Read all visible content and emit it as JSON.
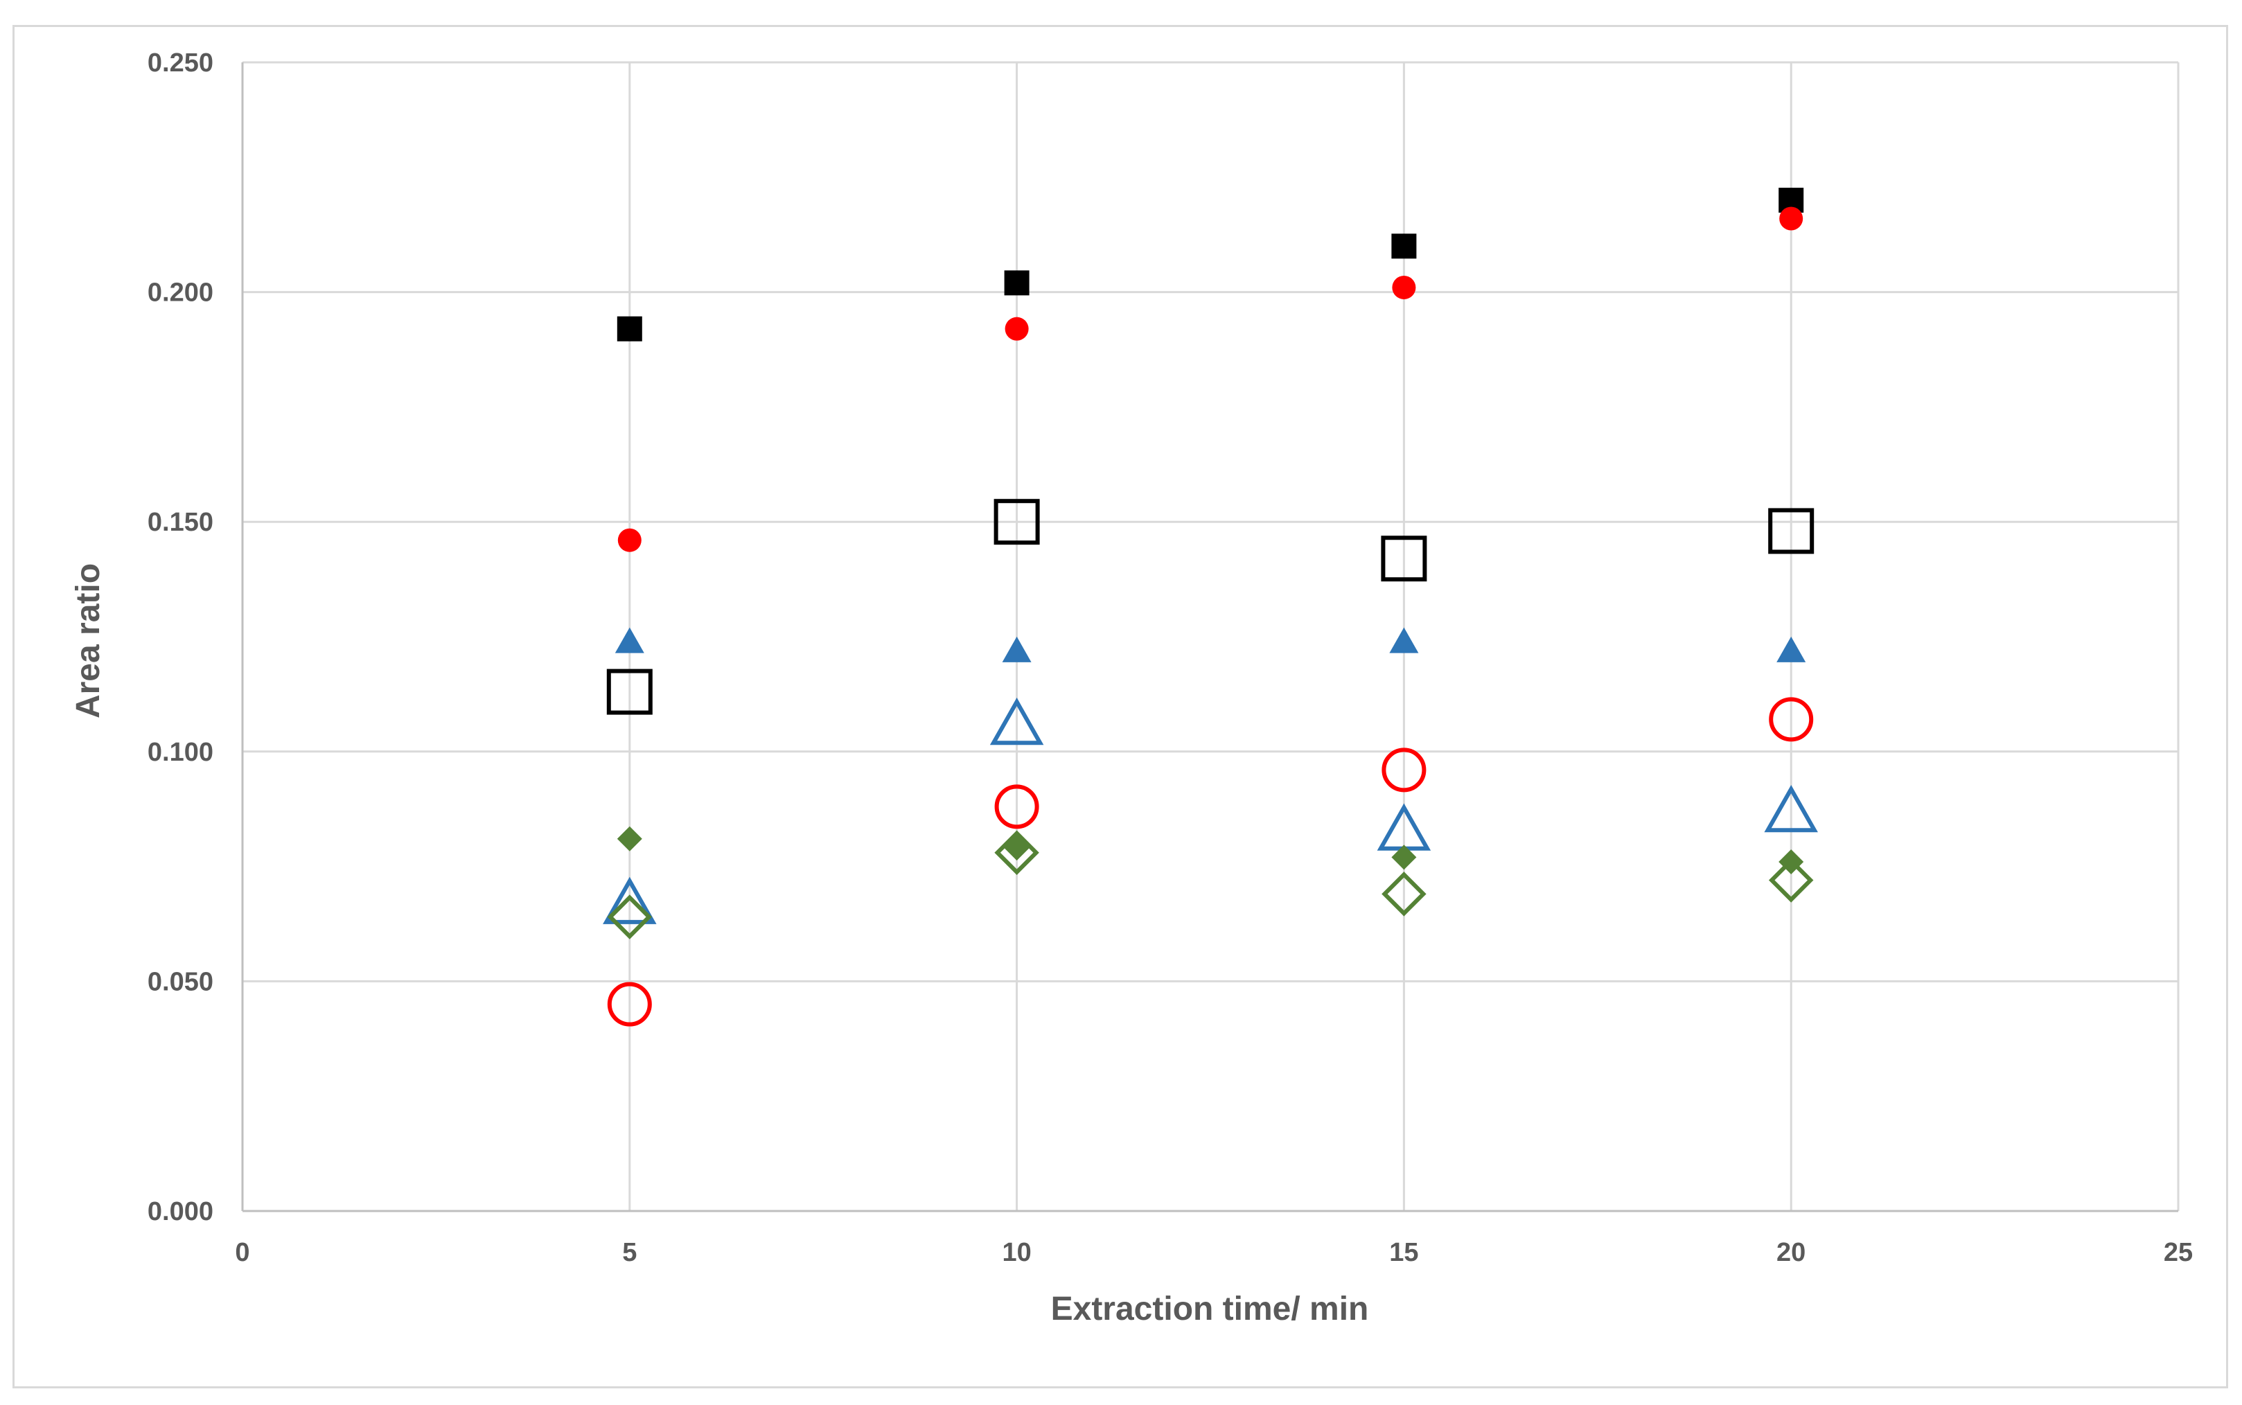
{
  "chart_data": {
    "type": "scatter",
    "xlabel": "Extraction time/ min",
    "ylabel": "Area ratio",
    "xlim": [
      0,
      25
    ],
    "ylim": [
      0,
      0.25
    ],
    "x_ticks": [
      "0",
      "5",
      "10",
      "15",
      "20",
      "25"
    ],
    "y_ticks": [
      "0.000",
      "0.050",
      "0.100",
      "0.150",
      "0.200",
      "0.250"
    ],
    "grid": true,
    "legend": "none",
    "series": [
      {
        "marker": "square",
        "filled": true,
        "color": "#000000",
        "x": [
          5,
          10,
          15,
          20
        ],
        "y": [
          0.192,
          0.202,
          0.21,
          0.22
        ]
      },
      {
        "marker": "circle",
        "filled": true,
        "color": "#ff0000",
        "x": [
          5,
          10,
          15,
          20
        ],
        "y": [
          0.146,
          0.192,
          0.201,
          0.216
        ]
      },
      {
        "marker": "square",
        "filled": false,
        "color": "#000000",
        "x": [
          5,
          10,
          15,
          20
        ],
        "y": [
          0.113,
          0.15,
          0.142,
          0.148
        ]
      },
      {
        "marker": "triangle",
        "filled": true,
        "color": "#2e75b6",
        "x": [
          5,
          10,
          15,
          20
        ],
        "y": [
          0.124,
          0.122,
          0.124,
          0.122
        ]
      },
      {
        "marker": "triangle",
        "filled": false,
        "color": "#2e75b6",
        "x": [
          5,
          10,
          15,
          20
        ],
        "y": [
          0.067,
          0.106,
          0.083,
          0.087
        ]
      },
      {
        "marker": "circle",
        "filled": false,
        "color": "#ff0000",
        "x": [
          5,
          10,
          15,
          20
        ],
        "y": [
          0.045,
          0.088,
          0.096,
          0.107
        ]
      },
      {
        "marker": "diamond",
        "filled": true,
        "color": "#548235",
        "x": [
          5,
          10,
          15,
          20
        ],
        "y": [
          0.081,
          0.079,
          0.077,
          0.076
        ]
      },
      {
        "marker": "diamond",
        "filled": false,
        "color": "#548235",
        "x": [
          5,
          10,
          15,
          20
        ],
        "y": [
          0.064,
          0.078,
          0.069,
          0.072
        ]
      }
    ]
  }
}
